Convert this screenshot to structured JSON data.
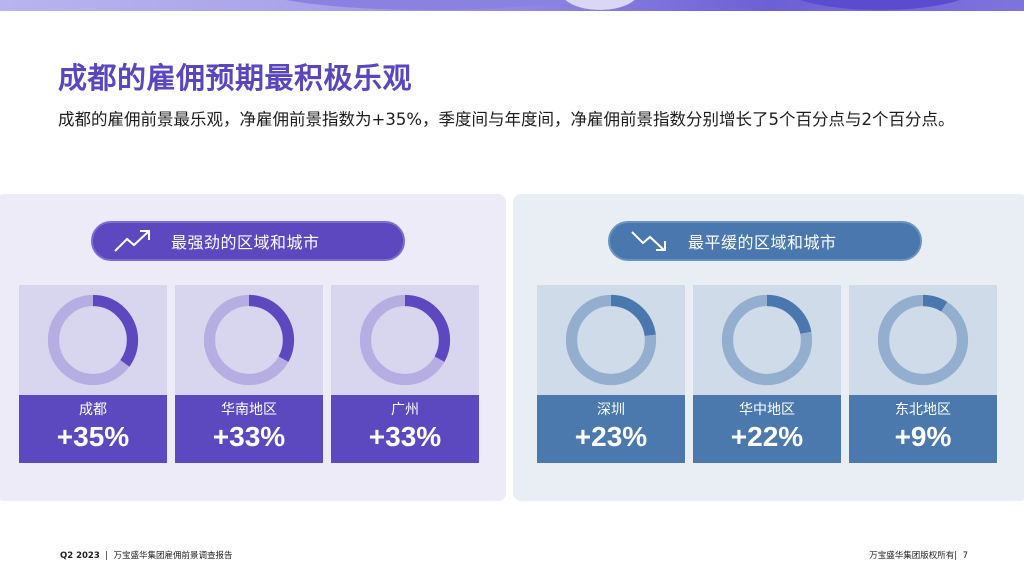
{
  "title": "成都的雇佣预期最积极乐观",
  "subtitle": "成都的雇佣前景最乐观，净雇佣前景指数为+35%，季度间与年度间，净雇佣前景指数分别增长了5个百分点与2个百分点。",
  "strongest": {
    "label": "最强劲的区域和城市",
    "icon": "trend-up-icon",
    "color": "#5e48bf",
    "items": [
      {
        "region": "成都",
        "value": "+35%",
        "pct": 35
      },
      {
        "region": "华南地区",
        "value": "+33%",
        "pct": 33
      },
      {
        "region": "广州",
        "value": "+33%",
        "pct": 33
      }
    ]
  },
  "flattest": {
    "label": "最平缓的区域和城市",
    "icon": "trend-down-icon",
    "color": "#4a77ad",
    "items": [
      {
        "region": "深圳",
        "value": "+23%",
        "pct": 23
      },
      {
        "region": "华中地区",
        "value": "+22%",
        "pct": 22
      },
      {
        "region": "东北地区",
        "value": "+9%",
        "pct": 9
      }
    ]
  },
  "footer": {
    "period": "Q2 2023",
    "separator": "|",
    "report": "万宝盛华集团雇佣前景调查报告",
    "copyright": "万宝盛华集团版权所有|",
    "page": "7"
  }
}
